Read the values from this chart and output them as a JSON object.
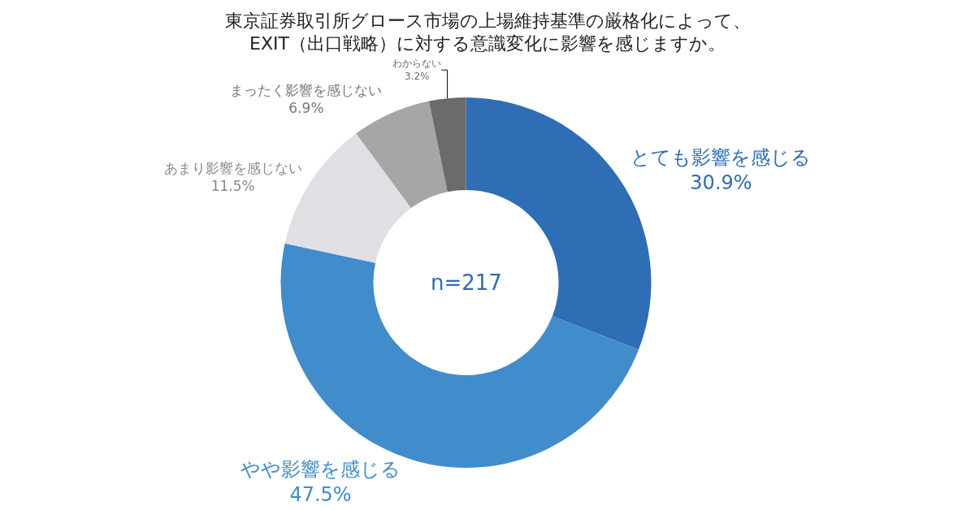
{
  "chart_data": {
    "type": "donut",
    "title": "東京証券取引所グロース市場の上場維持基準の厳格化によって、\nEXIT（出口戦略）に対する意識変化に影響を感じますか。",
    "categories": [
      "とても影響を感じる",
      "やや影響を感じる",
      "あまり影響を感じない",
      "まったく影響を感じない",
      "わからない"
    ],
    "values": [
      30.9,
      47.5,
      11.5,
      6.9,
      3.2
    ],
    "value_labels": [
      "30.9%",
      "47.5%",
      "11.5%",
      "6.9%",
      "3.2%"
    ],
    "colors": [
      "#2f6db5",
      "#418ccb",
      "#e0dfe3",
      "#a6a6a6",
      "#6b6b6b"
    ],
    "annotations": [
      "n=217"
    ],
    "legend": false
  }
}
